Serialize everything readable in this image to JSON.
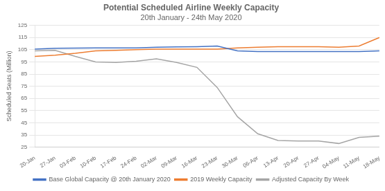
{
  "chart_data": {
    "type": "line",
    "title": "Potential Scheduled Airline Weekly Capacity",
    "subtitle": "20th January - 24th May 2020",
    "y_label": "Scheduled Seats (Million)",
    "categories": [
      "20-Jan",
      "27-Jan",
      "03-Feb",
      "10-Feb",
      "17-Feb",
      "24-Feb",
      "02-Mar",
      "09-Mar",
      "16-Mar",
      "23-Mar",
      "30-Mar",
      "06-Apr",
      "13-Apr",
      "20-Apr",
      "27-Apr",
      "04-May",
      "11-May",
      "18-May"
    ],
    "series": [
      {
        "name": "Base Global Capacity @ 20th January 2020",
        "color": "#4472C4",
        "values": [
          105.5,
          106.2,
          106.3,
          106.5,
          106.5,
          106.5,
          107.0,
          107.3,
          107.5,
          108.0,
          104.0,
          103.5,
          103.5,
          103.5,
          103.5,
          103.5,
          103.5,
          104.0
        ]
      },
      {
        "name": "2019 Weekly Capacity",
        "color": "#ED7D31",
        "values": [
          99.5,
          100.5,
          102.0,
          104.0,
          104.5,
          105.0,
          105.5,
          105.5,
          105.5,
          105.5,
          106.5,
          107.0,
          107.5,
          107.5,
          107.5,
          107.0,
          108.0,
          115.0
        ]
      },
      {
        "name": "Adjusted Capacity By Week",
        "color": "#A5A5A5",
        "values": [
          104.0,
          104.5,
          99.5,
          95.0,
          94.5,
          95.5,
          97.5,
          94.5,
          90.5,
          74.0,
          50.0,
          36.0,
          30.5,
          30.0,
          30.0,
          28.0,
          33.0,
          34.0
        ]
      }
    ],
    "ylim": [
      25,
      125
    ],
    "yticks": [
      25,
      35,
      45,
      55,
      65,
      75,
      85,
      95,
      105,
      115,
      125
    ],
    "grid": true,
    "legend": "bottom"
  }
}
